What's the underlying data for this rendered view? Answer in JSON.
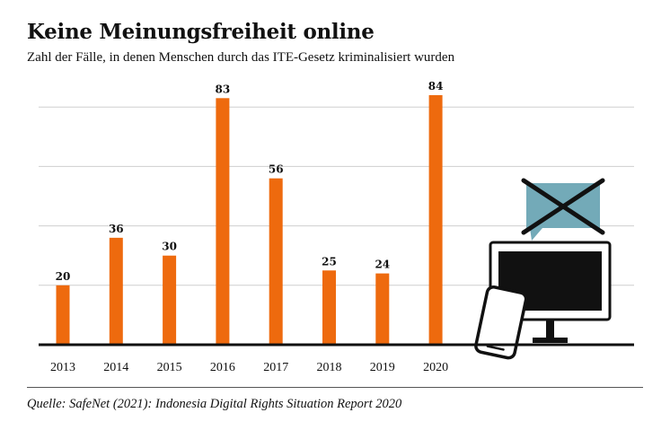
{
  "title": "Keine Meinungsfreiheit online",
  "subtitle": "Zahl der Fälle, in denen Menschen durch das ITE-Gesetz kriminalisiert wurden",
  "source": "Quelle: SafeNet (2021): Indonesia Digital Rights Situation Report 2020",
  "colors": {
    "bar": "#EE6A0E",
    "grid": "#cfcfcf",
    "axis": "#111111",
    "bubble": "#73AAB8"
  },
  "illustration": {
    "icons": [
      "speech-bubble-crossed-icon",
      "monitor-icon",
      "smartphone-icon"
    ]
  },
  "chart_data": {
    "type": "bar",
    "categories": [
      "2013",
      "2014",
      "2015",
      "2016",
      "2017",
      "2018",
      "2019",
      "2020"
    ],
    "values": [
      20,
      36,
      30,
      83,
      56,
      25,
      24,
      84
    ],
    "ylim": [
      0,
      84
    ],
    "grid": true,
    "gridlines": [
      20,
      40,
      60,
      80
    ],
    "xlabel": "",
    "ylabel": ""
  }
}
